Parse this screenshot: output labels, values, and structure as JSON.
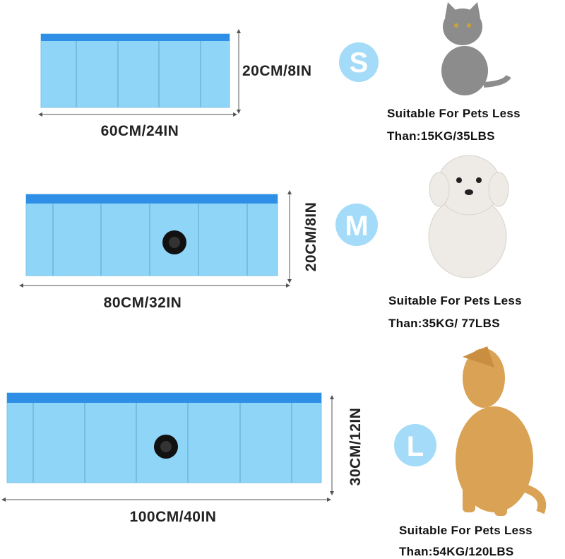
{
  "sizes": [
    {
      "letter": "S",
      "width": "60CM/24IN",
      "height": "20CM/8IN",
      "description": [
        "Suitable For Pets Less",
        "Than:15KG/35LBS"
      ]
    },
    {
      "letter": "M",
      "width": "80CM/32IN",
      "height": "20CM/8IN",
      "description": [
        "Suitable For Pets Less",
        "Than:35KG/ 77LBS"
      ]
    },
    {
      "letter": "L",
      "width": "100CM/40IN",
      "height": "30CM/12IN",
      "description": [
        "Suitable For Pets Less",
        "Than:54KG/120LBS"
      ]
    }
  ]
}
